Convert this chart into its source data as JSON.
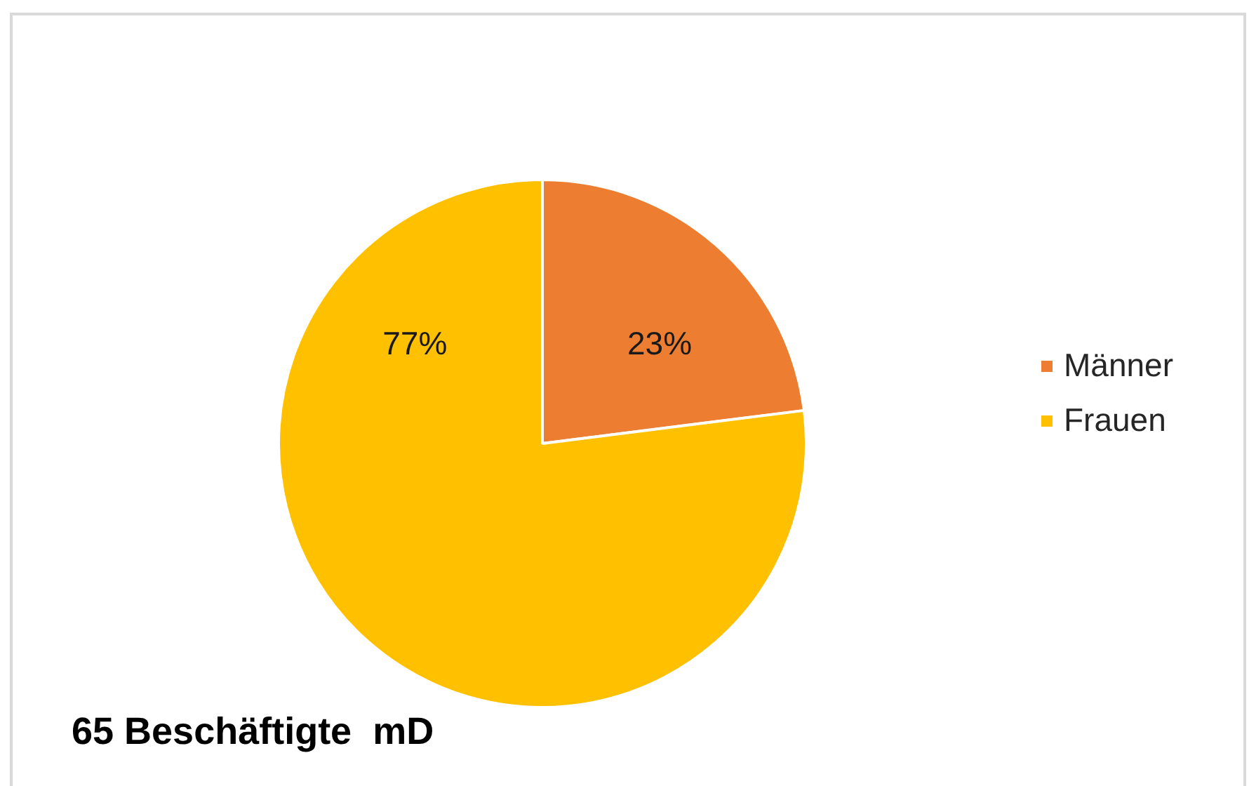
{
  "chart_data": {
    "type": "pie",
    "categories": [
      "Männer",
      "Frauen"
    ],
    "values": [
      23,
      77
    ],
    "colors": [
      "#ed7d31",
      "#ffc000"
    ],
    "value_labels": [
      "23%",
      "77%"
    ],
    "legend": "right",
    "annotations": [
      "65 Beschäftigte  mD"
    ]
  }
}
